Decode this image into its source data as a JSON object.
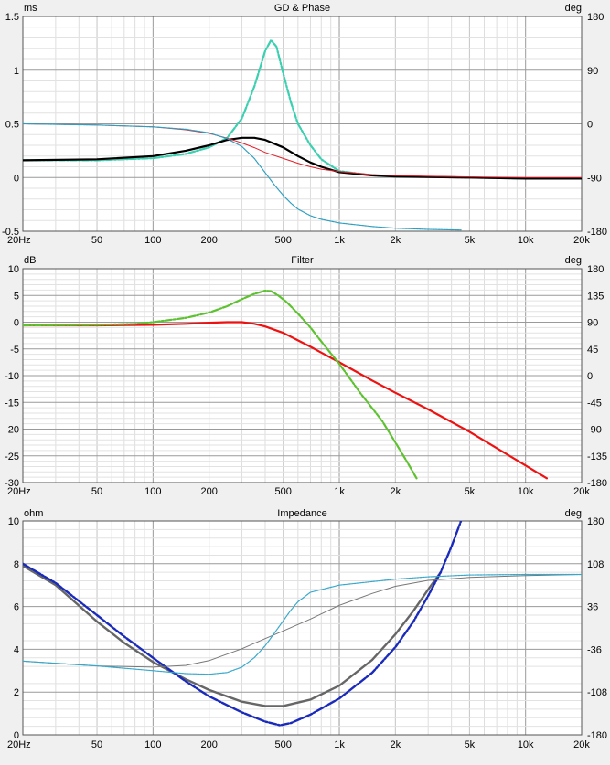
{
  "chart_data": [
    {
      "type": "line",
      "title": "GD & Phase",
      "left_unit": "ms",
      "right_unit": "deg",
      "xscale": "log",
      "xlim": [
        20,
        20000
      ],
      "ylim": [
        -0.5,
        1.5
      ],
      "y2lim": [
        -180,
        180
      ],
      "x_ticks": [
        20,
        50,
        100,
        200,
        500,
        1000,
        2000,
        5000,
        10000,
        20000
      ],
      "x_tick_labels": [
        "20Hz",
        "50",
        "100",
        "200",
        "500",
        "1k",
        "2k",
        "5k",
        "10k",
        "20k"
      ],
      "y_ticks": [
        -0.5,
        0,
        0.5,
        1,
        1.5
      ],
      "y_tick_labels": [
        "-0.5",
        "0",
        "0.5",
        "1",
        "1.5"
      ],
      "y2_ticks": [
        -180,
        -90,
        0,
        90,
        180
      ],
      "y2_tick_labels": [
        "-180",
        "-90",
        "0",
        "90",
        "180"
      ],
      "grid": true,
      "series": [
        {
          "axis": "y",
          "color": "#3ccfb0",
          "dash": "7,2,2,2",
          "width": 2.2,
          "x": [
            20,
            50,
            100,
            150,
            200,
            250,
            300,
            350,
            400,
            430,
            460,
            500,
            550,
            600,
            700,
            800,
            1000,
            1500,
            2000,
            5000,
            10000,
            20000
          ],
          "y": [
            0.16,
            0.16,
            0.18,
            0.22,
            0.28,
            0.37,
            0.55,
            0.85,
            1.18,
            1.28,
            1.22,
            0.97,
            0.7,
            0.5,
            0.3,
            0.17,
            0.06,
            0.02,
            0.01,
            0.0,
            -0.01,
            -0.01
          ]
        },
        {
          "axis": "y",
          "color": "#000000",
          "dash": "",
          "width": 2.2,
          "x": [
            20,
            50,
            100,
            150,
            200,
            250,
            300,
            350,
            400,
            500,
            600,
            700,
            800,
            1000,
            1500,
            2000,
            5000,
            10000,
            20000
          ],
          "y": [
            0.16,
            0.17,
            0.2,
            0.25,
            0.3,
            0.35,
            0.37,
            0.37,
            0.35,
            0.28,
            0.2,
            0.14,
            0.1,
            0.05,
            0.02,
            0.01,
            0.0,
            -0.01,
            -0.01
          ]
        },
        {
          "axis": "y2",
          "color": "#e0202a",
          "dash": "",
          "width": 1,
          "x": [
            20,
            50,
            100,
            150,
            200,
            250,
            300,
            350,
            400,
            500,
            600,
            700,
            800,
            1000,
            1500,
            2000,
            5000,
            10000,
            20000
          ],
          "y": [
            0,
            -2,
            -5,
            -10,
            -16,
            -24,
            -32,
            -40,
            -48,
            -58,
            -66,
            -72,
            -76,
            -80,
            -85,
            -87,
            -89,
            -90,
            -90
          ]
        },
        {
          "axis": "y2",
          "color": "#2f9fc0",
          "dash": "2,1",
          "width": 1.2,
          "x": [
            20,
            50,
            100,
            150,
            200,
            250,
            300,
            350,
            400,
            450,
            500,
            550,
            600,
            700,
            800,
            1000,
            1500,
            2000,
            3000,
            4500
          ],
          "y": [
            0,
            -2,
            -5,
            -9,
            -15,
            -25,
            -38,
            -58,
            -82,
            -103,
            -120,
            -133,
            -143,
            -154,
            -160,
            -166,
            -172,
            -175,
            -177,
            -178
          ]
        }
      ]
    },
    {
      "type": "line",
      "title": "Filter",
      "left_unit": "dB",
      "right_unit": "deg",
      "xscale": "log",
      "xlim": [
        20,
        20000
      ],
      "ylim": [
        -30,
        10
      ],
      "y2lim": [
        -180,
        180
      ],
      "x_ticks": [
        20,
        50,
        100,
        200,
        500,
        1000,
        2000,
        5000,
        10000,
        20000
      ],
      "x_tick_labels": [
        "20Hz",
        "50",
        "100",
        "200",
        "500",
        "1k",
        "2k",
        "5k",
        "10k",
        "20k"
      ],
      "y_ticks": [
        -30,
        -25,
        -20,
        -15,
        -10,
        -5,
        0,
        5,
        10
      ],
      "y_tick_labels": [
        "-30",
        "-25",
        "-20",
        "-15",
        "-10",
        "-5",
        "0",
        "5",
        "10"
      ],
      "y2_ticks": [
        -180,
        -135,
        -90,
        -45,
        0,
        45,
        90,
        135,
        180
      ],
      "y2_tick_labels": [
        "-180",
        "-135",
        "-90",
        "-45",
        "0",
        "45",
        "90",
        "135",
        "180"
      ],
      "grid": true,
      "series": [
        {
          "axis": "y",
          "color": "#ee1111",
          "dash": "",
          "width": 2.2,
          "x": [
            20,
            50,
            100,
            150,
            200,
            250,
            300,
            350,
            400,
            500,
            600,
            700,
            800,
            1000,
            1500,
            2000,
            3000,
            5000,
            10000,
            13000
          ],
          "y": [
            -0.6,
            -0.6,
            -0.5,
            -0.3,
            -0.1,
            0.0,
            0.0,
            -0.3,
            -0.8,
            -2.0,
            -3.4,
            -4.6,
            -5.7,
            -7.5,
            -10.9,
            -13.2,
            -16.3,
            -20.5,
            -26.8,
            -29.2
          ]
        },
        {
          "axis": "y",
          "color": "#5ec230",
          "dash": "7,2,2,2",
          "width": 2.2,
          "x": [
            20,
            50,
            80,
            100,
            150,
            200,
            250,
            300,
            350,
            400,
            430,
            470,
            520,
            600,
            700,
            800,
            1000,
            1300,
            1700,
            2000,
            2300,
            2600
          ],
          "y": [
            -0.6,
            -0.5,
            -0.3,
            0.0,
            0.8,
            1.8,
            3.0,
            4.3,
            5.3,
            5.9,
            5.8,
            5.0,
            3.8,
            1.6,
            -1.0,
            -3.6,
            -7.8,
            -13.3,
            -18.5,
            -22.5,
            -26.0,
            -29.2
          ]
        }
      ]
    },
    {
      "type": "line",
      "title": "Impedance",
      "left_unit": "ohm",
      "right_unit": "deg",
      "xscale": "log",
      "xlim": [
        20,
        20000
      ],
      "ylim": [
        0,
        10
      ],
      "y2lim": [
        -180,
        180
      ],
      "x_ticks": [
        20,
        50,
        100,
        200,
        500,
        1000,
        2000,
        5000,
        10000,
        20000
      ],
      "x_tick_labels": [
        "20Hz",
        "50",
        "100",
        "200",
        "500",
        "1k",
        "2k",
        "5k",
        "10k",
        "20k"
      ],
      "y_ticks": [
        0,
        2,
        4,
        6,
        8,
        10
      ],
      "y_tick_labels": [
        "0",
        "2",
        "4",
        "6",
        "8",
        "10"
      ],
      "y2_ticks": [
        -180,
        -108,
        -36,
        36,
        108,
        180
      ],
      "y2_tick_labels": [
        "-180",
        "-108",
        "-36",
        "36",
        "108",
        "180"
      ],
      "grid": true,
      "series": [
        {
          "axis": "y",
          "color": "#666666",
          "dash": "",
          "width": 2.4,
          "x": [
            20,
            30,
            50,
            70,
            100,
            150,
            200,
            300,
            400,
            500,
            700,
            1000,
            1500,
            2000,
            2500,
            3000,
            3500
          ],
          "y": [
            7.9,
            7.0,
            5.3,
            4.3,
            3.4,
            2.6,
            2.1,
            1.55,
            1.35,
            1.35,
            1.65,
            2.3,
            3.5,
            4.7,
            5.8,
            6.8,
            7.6
          ]
        },
        {
          "axis": "y",
          "color": "#1a2bbb",
          "dash": "8,2,2,2",
          "width": 2.4,
          "x": [
            20,
            30,
            50,
            70,
            100,
            150,
            200,
            300,
            400,
            480,
            550,
            700,
            1000,
            1500,
            2000,
            2500,
            3000,
            3500,
            4000,
            4500
          ],
          "y": [
            8.0,
            7.1,
            5.6,
            4.6,
            3.6,
            2.5,
            1.8,
            1.05,
            0.62,
            0.45,
            0.55,
            0.95,
            1.7,
            2.9,
            4.1,
            5.3,
            6.5,
            7.6,
            8.8,
            10.0
          ]
        },
        {
          "axis": "y2",
          "color": "#777777",
          "dash": "",
          "width": 1,
          "x": [
            20,
            50,
            100,
            150,
            200,
            300,
            400,
            500,
            700,
            1000,
            1500,
            2000,
            3000,
            5000,
            10000,
            20000
          ],
          "y": [
            -56,
            -64,
            -66,
            -63,
            -55,
            -35,
            -18,
            -5,
            15,
            38,
            58,
            70,
            80,
            85,
            88,
            90
          ]
        },
        {
          "axis": "y2",
          "color": "#35a8cc",
          "dash": "2,1",
          "width": 1.2,
          "x": [
            20,
            50,
            100,
            150,
            200,
            250,
            300,
            350,
            400,
            450,
            500,
            550,
            600,
            700,
            1000,
            2000,
            3000,
            5000,
            10000,
            20000
          ],
          "y": [
            -56,
            -64,
            -72,
            -77,
            -78,
            -75,
            -66,
            -50,
            -30,
            -8,
            12,
            30,
            44,
            60,
            72,
            82,
            86,
            89,
            90,
            90
          ]
        }
      ]
    }
  ]
}
